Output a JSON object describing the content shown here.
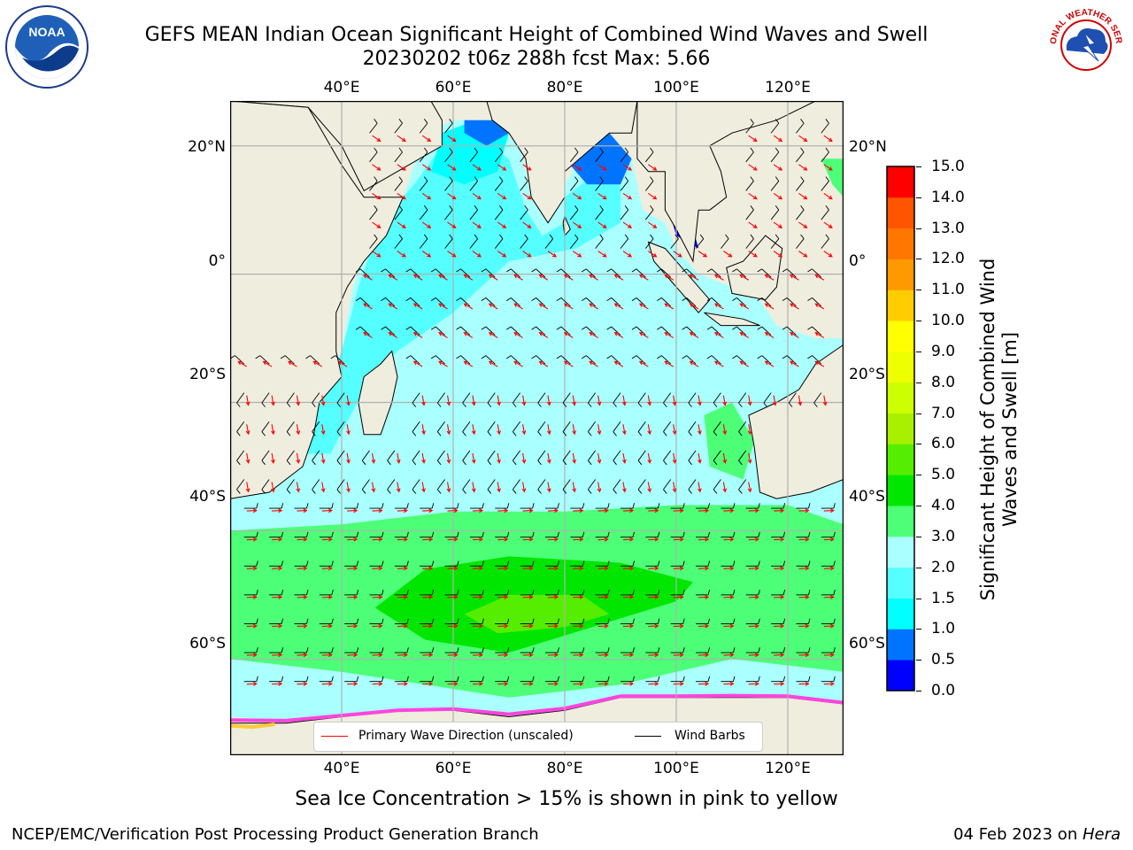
{
  "title": {
    "line1": "GEFS MEAN Indian Ocean Significant Height of Combined Wind Waves and Swell",
    "line2": "20230202 t06z 288h fcst   Max: 5.66"
  },
  "map": {
    "lon_range": [
      20,
      130
    ],
    "lat_range": [
      -75,
      27
    ],
    "lon_ticks": [
      "40°E",
      "60°E",
      "80°E",
      "100°E",
      "120°E"
    ],
    "lat_ticks": [
      "20°N",
      "0°",
      "20°S",
      "40°S",
      "60°S"
    ],
    "colors": {
      "land": "#efedde",
      "gridline": "#b0b0b0",
      "wave_arrow": "#ff0000",
      "wind_barb": "#000000"
    }
  },
  "colorbar": {
    "label": "Significant Height of Combined Wind Waves and Swell [m]",
    "levels": [
      "0.0",
      "0.5",
      "1.0",
      "1.5",
      "2.0",
      "3.0",
      "4.0",
      "5.0",
      "6.0",
      "7.0",
      "8.0",
      "9.0",
      "10.0",
      "11.0",
      "12.0",
      "13.0",
      "14.0",
      "15.0"
    ],
    "colors": [
      "#0000ff",
      "#0073ff",
      "#00ffff",
      "#55ffff",
      "#aaffff",
      "#4dff77",
      "#00e600",
      "#55ee00",
      "#a8f000",
      "#ccff00",
      "#eeff00",
      "#ffff00",
      "#ffcc00",
      "#ff9900",
      "#ff7700",
      "#ff5500",
      "#ff0000"
    ]
  },
  "legend": {
    "wave_label": "Primary Wave Direction (unscaled)",
    "wind_label": "Wind Barbs"
  },
  "footnote": "Sea Ice Concentration > 15% is shown in pink to yellow",
  "credit": "NCEP/EMC/Verification Post Processing Product Generation Branch",
  "date": {
    "text": "04 Feb 2023 on ",
    "machine": "Hera"
  },
  "logos": {
    "left": "NOAA",
    "right": "NATIONAL WEATHER SERVICE"
  }
}
